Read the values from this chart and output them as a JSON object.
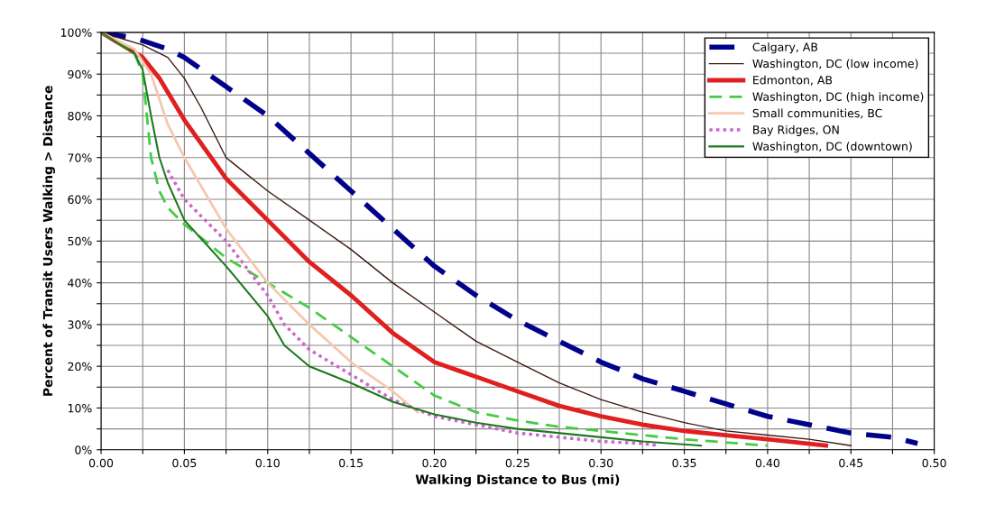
{
  "chart_data": {
    "type": "line",
    "xlabel": "Walking Distance to Bus (mi)",
    "ylabel": "Percent of Transit Users Walking > Distance",
    "xlim": [
      0,
      0.5
    ],
    "ylim": [
      0,
      100
    ],
    "xticks": [
      {
        "value": 0,
        "label": "0.00"
      },
      {
        "value": 0.025,
        "label": null
      },
      {
        "value": 0.05,
        "label": "0.05"
      },
      {
        "value": 0.075,
        "label": null
      },
      {
        "value": 0.1,
        "label": "0.10"
      },
      {
        "value": 0.125,
        "label": null
      },
      {
        "value": 0.15,
        "label": "0.15"
      },
      {
        "value": 0.175,
        "label": null
      },
      {
        "value": 0.2,
        "label": "0.20"
      },
      {
        "value": 0.225,
        "label": null
      },
      {
        "value": 0.25,
        "label": "0.25"
      },
      {
        "value": 0.275,
        "label": null
      },
      {
        "value": 0.3,
        "label": "0.30"
      },
      {
        "value": 0.325,
        "label": null
      },
      {
        "value": 0.35,
        "label": "0.35"
      },
      {
        "value": 0.375,
        "label": null
      },
      {
        "value": 0.4,
        "label": "0.40"
      },
      {
        "value": 0.425,
        "label": null
      },
      {
        "value": 0.45,
        "label": "0.45"
      },
      {
        "value": 0.475,
        "label": null
      },
      {
        "value": 0.5,
        "label": "0.50"
      }
    ],
    "yticks": [
      {
        "value": 0,
        "label": "0%"
      },
      {
        "value": 5,
        "label": null
      },
      {
        "value": 10,
        "label": "10%"
      },
      {
        "value": 15,
        "label": null
      },
      {
        "value": 20,
        "label": "20%"
      },
      {
        "value": 25,
        "label": null
      },
      {
        "value": 30,
        "label": "30%"
      },
      {
        "value": 35,
        "label": null
      },
      {
        "value": 40,
        "label": "40%"
      },
      {
        "value": 45,
        "label": null
      },
      {
        "value": 50,
        "label": "50%"
      },
      {
        "value": 55,
        "label": null
      },
      {
        "value": 60,
        "label": "60%"
      },
      {
        "value": 65,
        "label": null
      },
      {
        "value": 70,
        "label": "70%"
      },
      {
        "value": 75,
        "label": null
      },
      {
        "value": 80,
        "label": "80%"
      },
      {
        "value": 85,
        "label": null
      },
      {
        "value": 90,
        "label": "90%"
      },
      {
        "value": 95,
        "label": null
      },
      {
        "value": 100,
        "label": "100%"
      }
    ],
    "grid": true,
    "legend": "top right",
    "marker": "none",
    "series": [
      {
        "name": "Calgary, AB",
        "color": "#00008b",
        "line_style": "dashed",
        "x": [
          0,
          0.015,
          0.025,
          0.04,
          0.05,
          0.075,
          0.1,
          0.125,
          0.15,
          0.175,
          0.2,
          0.225,
          0.25,
          0.275,
          0.3,
          0.325,
          0.35,
          0.375,
          0.4,
          0.425,
          0.45,
          0.475,
          0.49
        ],
        "values": [
          100,
          99,
          98,
          96,
          94,
          87,
          80,
          71,
          62,
          53,
          44,
          37,
          31,
          26,
          21,
          17,
          14,
          11,
          8,
          6,
          4,
          3,
          1.5
        ]
      },
      {
        "name": "Washington, DC (low income)",
        "color": "#3b1a10",
        "line_style": "solid",
        "x": [
          0,
          0.025,
          0.04,
          0.05,
          0.06,
          0.075,
          0.1,
          0.125,
          0.15,
          0.175,
          0.2,
          0.225,
          0.25,
          0.275,
          0.3,
          0.325,
          0.35,
          0.375,
          0.4,
          0.425,
          0.45
        ],
        "values": [
          100,
          97,
          94,
          89,
          82,
          70,
          62,
          55,
          48,
          40,
          33,
          26,
          21,
          16,
          12,
          9,
          6.5,
          4.5,
          3.5,
          2.5,
          1
        ]
      },
      {
        "name": "Edmonton, AB",
        "color": "#e02020",
        "line_style": "solid",
        "x": [
          0,
          0.025,
          0.035,
          0.05,
          0.075,
          0.1,
          0.125,
          0.15,
          0.175,
          0.2,
          0.225,
          0.25,
          0.275,
          0.3,
          0.325,
          0.35,
          0.375,
          0.4,
          0.435
        ],
        "values": [
          100,
          94,
          89,
          79,
          65,
          55,
          45,
          37,
          28,
          21,
          17.5,
          14,
          10.5,
          8,
          6,
          4.5,
          3.5,
          2.5,
          1
        ]
      },
      {
        "name": "Washington, DC (high income)",
        "color": "#44cc44",
        "line_style": "dashed",
        "x": [
          0,
          0.02,
          0.025,
          0.03,
          0.035,
          0.04,
          0.05,
          0.075,
          0.1,
          0.125,
          0.15,
          0.175,
          0.2,
          0.225,
          0.25,
          0.275,
          0.3,
          0.35,
          0.4
        ],
        "values": [
          100,
          95,
          90,
          70,
          62,
          58,
          54,
          46,
          40,
          34,
          27,
          20,
          13,
          9,
          7,
          5.5,
          4.5,
          2.5,
          1
        ]
      },
      {
        "name": "Small communities, BC",
        "color": "#f5c8b0",
        "line_style": "solid",
        "x": [
          0,
          0.02,
          0.03,
          0.04,
          0.05,
          0.075,
          0.1,
          0.125,
          0.15,
          0.175,
          0.19
        ],
        "values": [
          100,
          96,
          90,
          78,
          70,
          53,
          40,
          30,
          21,
          14,
          9
        ]
      },
      {
        "name": "Bay Ridges, ON",
        "color": "#cc66cc",
        "line_style": "dotted",
        "x": [
          0.04,
          0.05,
          0.075,
          0.1,
          0.11,
          0.125,
          0.15,
          0.175,
          0.2,
          0.225,
          0.25,
          0.275,
          0.3,
          0.325,
          0.335
        ],
        "values": [
          67,
          60,
          50,
          37,
          30,
          24,
          18,
          12,
          8,
          6,
          4,
          3,
          2,
          1.5,
          1
        ]
      },
      {
        "name": "Washington, DC (downtown)",
        "color": "#1e7a1e",
        "line_style": "solid",
        "x": [
          0,
          0.02,
          0.025,
          0.03,
          0.035,
          0.04,
          0.05,
          0.075,
          0.1,
          0.11,
          0.125,
          0.15,
          0.175,
          0.2,
          0.225,
          0.25,
          0.3,
          0.325,
          0.36
        ],
        "values": [
          100,
          95,
          91,
          80,
          70,
          64,
          55,
          44,
          32,
          25,
          20,
          16,
          11.5,
          8.5,
          6.5,
          5,
          3,
          2,
          1
        ]
      }
    ]
  }
}
